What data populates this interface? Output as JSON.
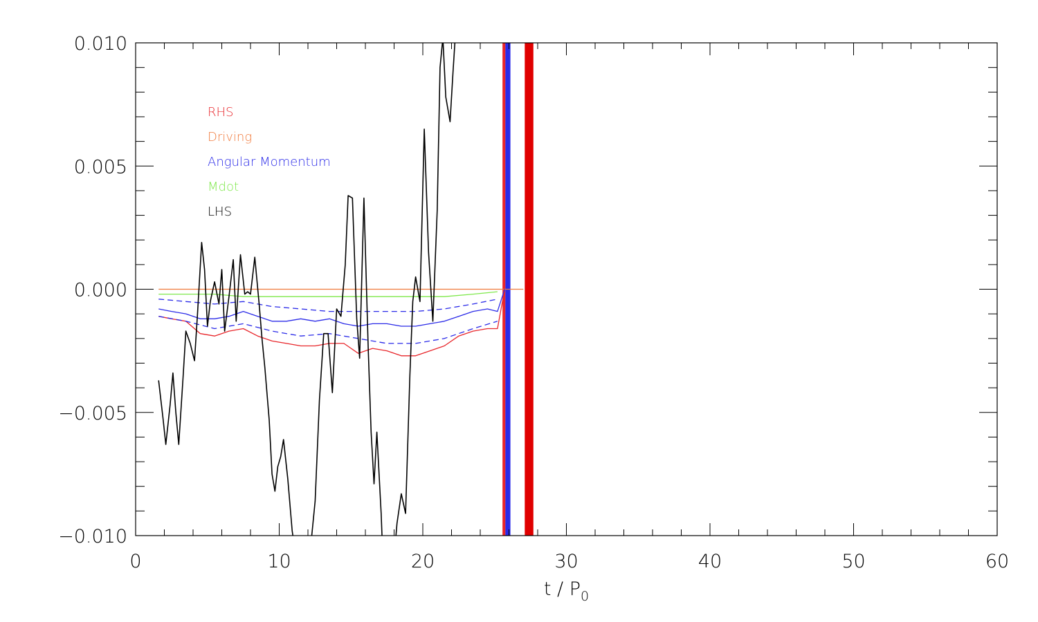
{
  "chart_data": {
    "type": "line",
    "title": "",
    "xlabel": "t / P",
    "xlabel_subscript": "0",
    "ylabel": "",
    "xlim": [
      0,
      60
    ],
    "ylim": [
      -0.01,
      0.01
    ],
    "x_ticks": [
      0,
      10,
      20,
      30,
      40,
      50,
      60
    ],
    "x_tick_labels": [
      "0",
      "10",
      "20",
      "30",
      "40",
      "50",
      "60"
    ],
    "y_ticks": [
      -0.01,
      -0.005,
      0.0,
      0.005,
      0.01
    ],
    "y_tick_labels": [
      "−0.010",
      "−0.005",
      "0.000",
      "0.005",
      "0.010"
    ],
    "x_minor_step": 2,
    "y_minor_step": 0.001,
    "grid": false,
    "legend_position": "upper-left",
    "legend": [
      {
        "label": "RHS",
        "color": "#e8252a"
      },
      {
        "label": "Driving",
        "color": "#f07a3c"
      },
      {
        "label": "Angular Momentum",
        "color": "#2a2ae8"
      },
      {
        "label": "Mdot",
        "color": "#7ee84a"
      },
      {
        "label": "LHS",
        "color": "#000000"
      }
    ],
    "series": [
      {
        "name": "RHS",
        "color": "#e8252a",
        "style": "solid",
        "x": [
          1.6,
          2.5,
          3.5,
          4.5,
          5.5,
          6.5,
          7.5,
          8.5,
          9.5,
          10.5,
          11.5,
          12.5,
          13.5,
          14.5,
          15.5,
          16.5,
          17.5,
          18.5,
          19.5,
          20.5,
          21.5,
          22.5,
          23.5,
          24.5,
          25.2,
          25.7
        ],
        "y": [
          -0.0011,
          -0.0012,
          -0.0013,
          -0.0018,
          -0.0019,
          -0.0017,
          -0.0016,
          -0.0019,
          -0.0021,
          -0.0022,
          -0.0023,
          -0.0023,
          -0.0022,
          -0.0022,
          -0.0026,
          -0.0024,
          -0.0025,
          -0.0027,
          -0.0027,
          -0.0025,
          -0.0023,
          -0.0019,
          -0.0017,
          -0.0016,
          -0.0016,
          0.0
        ]
      },
      {
        "name": "Driving",
        "color": "#f07a3c",
        "style": "solid",
        "x": [
          1.6,
          27.0
        ],
        "y": [
          0.0,
          0.0
        ]
      },
      {
        "name": "Angular Momentum",
        "color": "#2a2ae8",
        "style": "solid",
        "x": [
          1.6,
          2.5,
          3.5,
          4.5,
          5.5,
          6.5,
          7.5,
          8.5,
          9.5,
          10.5,
          11.5,
          12.5,
          13.5,
          14.5,
          15.5,
          16.5,
          17.5,
          18.5,
          19.5,
          20.5,
          21.5,
          22.5,
          23.5,
          24.5,
          25.2,
          25.7
        ],
        "y": [
          -0.0008,
          -0.0009,
          -0.001,
          -0.0012,
          -0.0012,
          -0.0011,
          -0.0009,
          -0.0011,
          -0.0013,
          -0.0013,
          -0.0012,
          -0.0013,
          -0.0012,
          -0.0014,
          -0.0015,
          -0.0014,
          -0.0014,
          -0.0015,
          -0.0015,
          -0.0014,
          -0.0013,
          -0.0011,
          -0.0009,
          -0.0008,
          -0.0009,
          0.0
        ]
      },
      {
        "name": "Angular Momentum (upper)",
        "color": "#2a2ae8",
        "style": "dashed",
        "x": [
          1.6,
          3.5,
          5.5,
          7.5,
          9.5,
          11.5,
          13.5,
          15.5,
          17.5,
          19.5,
          21.5,
          23.5,
          25.2
        ],
        "y": [
          -0.0004,
          -0.0005,
          -0.0006,
          -0.0005,
          -0.0007,
          -0.0008,
          -0.0009,
          -0.0009,
          -0.0009,
          -0.0009,
          -0.0008,
          -0.0006,
          -0.0004
        ]
      },
      {
        "name": "Angular Momentum (lower)",
        "color": "#2a2ae8",
        "style": "dashed",
        "x": [
          1.6,
          3.5,
          5.5,
          7.5,
          9.5,
          11.5,
          13.5,
          15.5,
          17.5,
          19.5,
          21.5,
          23.5,
          25.2
        ],
        "y": [
          -0.0011,
          -0.0013,
          -0.0016,
          -0.0014,
          -0.0017,
          -0.0019,
          -0.0018,
          -0.002,
          -0.0022,
          -0.0022,
          -0.002,
          -0.0016,
          -0.0013
        ]
      },
      {
        "name": "Mdot",
        "color": "#7ee84a",
        "style": "solid",
        "x": [
          1.6,
          3.5,
          5.5,
          7.5,
          9.5,
          11.5,
          13.5,
          15.5,
          17.5,
          19.5,
          21.5,
          23.5,
          25.2
        ],
        "y": [
          -0.0002,
          -0.0002,
          -0.0002,
          -0.0003,
          -0.0003,
          -0.0003,
          -0.0003,
          -0.0003,
          -0.0003,
          -0.0003,
          -0.0003,
          -0.0002,
          -0.0001
        ]
      },
      {
        "name": "LHS",
        "color": "#000000",
        "style": "solid",
        "x": [
          1.6,
          1.9,
          2.1,
          2.4,
          2.6,
          2.8,
          3.0,
          3.3,
          3.5,
          3.8,
          4.1,
          4.3,
          4.6,
          4.8,
          5.0,
          5.2,
          5.5,
          5.8,
          6.0,
          6.2,
          6.5,
          6.8,
          7.0,
          7.3,
          7.6,
          7.8,
          8.0,
          8.3,
          8.6,
          8.8,
          9.0,
          9.3,
          9.5,
          9.7,
          9.9,
          10.1,
          10.3,
          10.6,
          10.9,
          11.1,
          11.3,
          11.5,
          11.7,
          11.9,
          12.2,
          12.5,
          12.8,
          13.1,
          13.4,
          13.7,
          14.0,
          14.3,
          14.6,
          14.8,
          15.1,
          15.4,
          15.6,
          15.9,
          16.2,
          16.4,
          16.6,
          16.8,
          17.1,
          17.3,
          17.6,
          17.9,
          18.2,
          18.5,
          18.8,
          19.1,
          19.3,
          19.5,
          19.8,
          20.1,
          20.4,
          20.7,
          21.0,
          21.2,
          21.4,
          21.6,
          21.9,
          22.1,
          22.3
        ],
        "y": [
          -0.0037,
          -0.0052,
          -0.0063,
          -0.0047,
          -0.0034,
          -0.005,
          -0.0063,
          -0.0036,
          -0.0017,
          -0.0022,
          -0.0029,
          -0.0011,
          0.0019,
          0.0008,
          -0.0015,
          -0.0005,
          0.0003,
          -0.0006,
          0.0008,
          -0.0017,
          -0.0003,
          0.0012,
          -0.0013,
          0.0014,
          -0.0002,
          -0.0001,
          -0.0002,
          0.0013,
          -0.0006,
          -0.002,
          -0.0032,
          -0.0053,
          -0.0075,
          -0.0082,
          -0.0072,
          -0.0068,
          -0.0061,
          -0.0077,
          -0.0098,
          -0.0106,
          -0.0108,
          -0.0103,
          -0.0108,
          -0.0114,
          -0.0104,
          -0.0086,
          -0.0045,
          -0.0018,
          -0.0018,
          -0.0042,
          -0.0008,
          -0.0011,
          0.001,
          0.0038,
          0.0037,
          -0.0012,
          -0.0028,
          0.0037,
          -0.0024,
          -0.0058,
          -0.0079,
          -0.0058,
          -0.0091,
          -0.0122,
          -0.0103,
          -0.0116,
          -0.0095,
          -0.0083,
          -0.0091,
          -0.0035,
          -0.0005,
          0.0005,
          -0.0005,
          0.0065,
          0.0015,
          -0.0013,
          0.0032,
          0.009,
          0.0102,
          0.0078,
          0.0068,
          0.0088,
          0.0106
        ]
      }
    ],
    "vertical_bands": [
      {
        "x0": 25.55,
        "x1": 25.75,
        "color": "#e8252a"
      },
      {
        "x0": 25.75,
        "x1": 26.1,
        "color": "#2a2ae8"
      },
      {
        "x0": 27.1,
        "x1": 27.7,
        "color": "#e00000"
      }
    ]
  }
}
